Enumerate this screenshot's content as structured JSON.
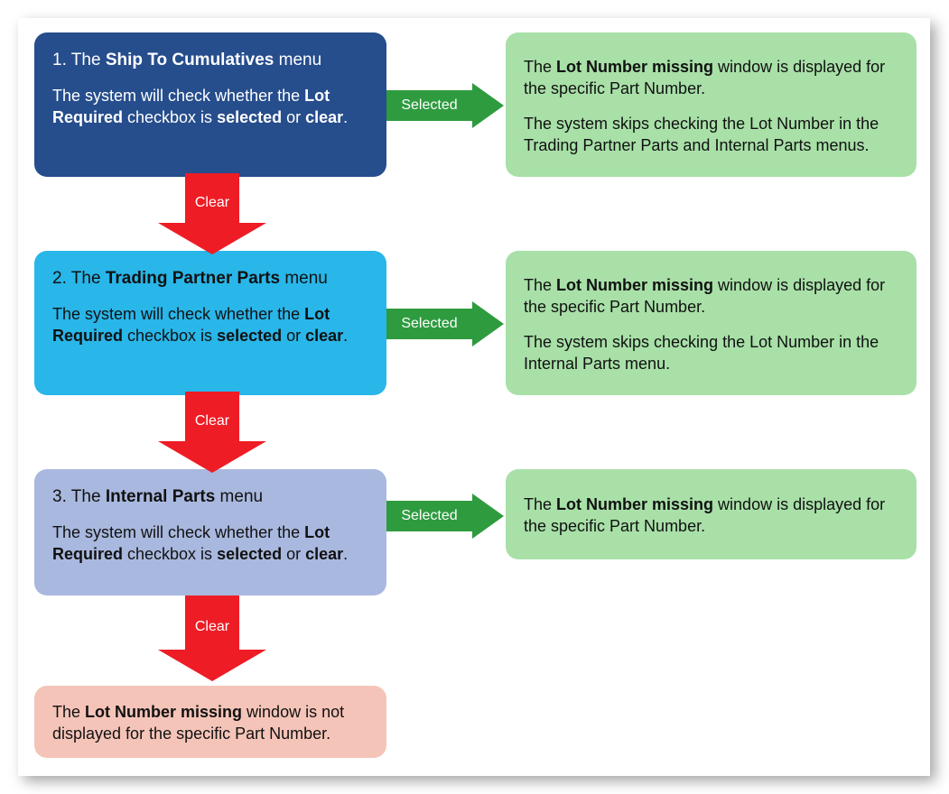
{
  "colors": {
    "step1_bg": "#264d8c",
    "step2_bg": "#29b6e9",
    "step3_bg": "#a9b8de",
    "result_bg": "#a8e0a8",
    "final_bg": "#f5c4b8",
    "arrow_green": "#2e9b3f",
    "arrow_red": "#ee1c25",
    "canvas_bg": "#ffffff"
  },
  "labels": {
    "selected": "Selected",
    "clear": "Clear"
  },
  "steps": {
    "s1": {
      "num": "1.",
      "pre": "The ",
      "bold": "Ship To Cumulatives",
      "post": " menu",
      "body_pre": "The system will check whether the ",
      "body_b1": "Lot Required",
      "body_mid": " checkbox is ",
      "body_b2": "selected",
      "body_or": " or ",
      "body_b3": "clear",
      "body_end": "."
    },
    "s2": {
      "num": "2.",
      "pre": "The ",
      "bold": "Trading Partner Parts",
      "post": " menu",
      "body_pre": "The system will check whether the ",
      "body_b1": "Lot Required",
      "body_mid": " checkbox is ",
      "body_b2": "selected",
      "body_or": " or ",
      "body_b3": "clear",
      "body_end": "."
    },
    "s3": {
      "num": "3.",
      "pre": "The ",
      "bold": "Internal Parts",
      "post": " menu",
      "body_pre": "The system will check whether the ",
      "body_b1": "Lot Required",
      "body_mid": " checkbox is ",
      "body_b2": "selected",
      "body_or": " or ",
      "body_b3": "clear",
      "body_end": "."
    }
  },
  "results": {
    "r1": {
      "p1_pre": "The ",
      "p1_b": "Lot Number missing",
      "p1_post": " window is displayed for the specific Part Number.",
      "p2": "The system skips checking the Lot Number in the Trading Partner Parts and Internal Parts menus."
    },
    "r2": {
      "p1_pre": "The ",
      "p1_b": "Lot Number missing",
      "p1_post": " window is displayed for the specific Part Number.",
      "p2": "The system skips checking the Lot Number in the Internal Parts menu."
    },
    "r3": {
      "p1_pre": "The ",
      "p1_b": "Lot Number missing",
      "p1_post": " window is displayed for the specific Part Number."
    },
    "final": {
      "p1_pre": "The ",
      "p1_b": "Lot Number missing",
      "p1_post": " window is not displayed for the specific Part Number."
    }
  }
}
